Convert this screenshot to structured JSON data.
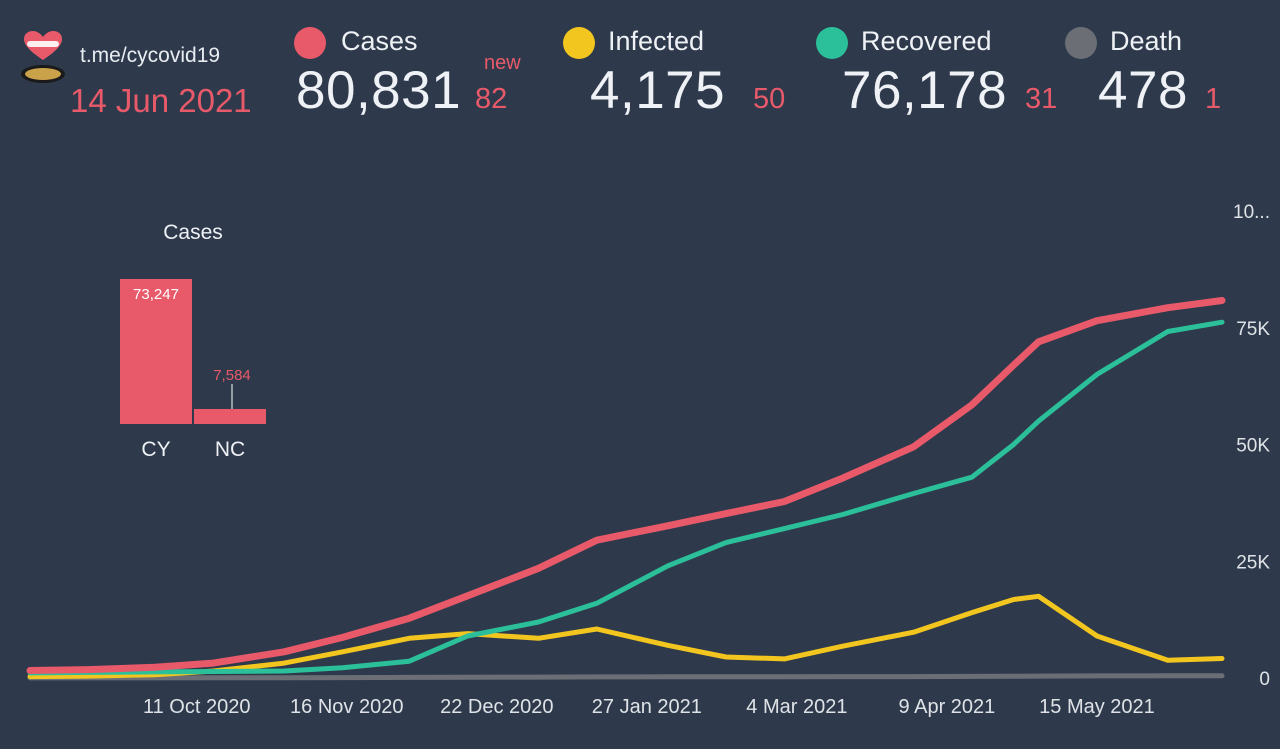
{
  "header": {
    "link": "t.me/cycovid19",
    "date": "14 Jun 2021"
  },
  "stats": [
    {
      "label": "Cases",
      "value": "80,831",
      "new_label": "new",
      "new": "82",
      "color": "#e85a6a"
    },
    {
      "label": "Infected",
      "value": "4,175",
      "new": "50",
      "color": "#f2c61f"
    },
    {
      "label": "Recovered",
      "value": "76,178",
      "new": "31",
      "color": "#2bbf9a"
    },
    {
      "label": "Death",
      "value": "478",
      "new": "1",
      "color": "#6b6f75"
    }
  ],
  "bar_chart": {
    "title": "Cases",
    "categories": [
      "CY",
      "NC"
    ],
    "values": [
      73247,
      7584
    ],
    "value_labels": [
      "73,247",
      "7,584"
    ],
    "color": "#e85a6a"
  },
  "chart_data": {
    "type": "line",
    "x_tick_labels": [
      "11 Oct 2020",
      "16 Nov 2020",
      "22 Dec 2020",
      "27 Jan 2021",
      "4 Mar 2021",
      "9 Apr 2021",
      "15 May 2021"
    ],
    "y_tick_labels": [
      "0",
      "25K",
      "50K",
      "75K",
      "10..."
    ],
    "ylim": [
      0,
      100000
    ],
    "x_dates": [
      "2020-09-01",
      "2020-09-15",
      "2020-10-01",
      "2020-10-15",
      "2020-11-01",
      "2020-11-15",
      "2020-12-01",
      "2020-12-15",
      "2021-01-01",
      "2021-01-15",
      "2021-02-01",
      "2021-02-15",
      "2021-03-01",
      "2021-03-15",
      "2021-04-01",
      "2021-04-15",
      "2021-04-25",
      "2021-05-01",
      "2021-05-15",
      "2021-06-01",
      "2021-06-14"
    ],
    "series": [
      {
        "name": "Cases",
        "color": "#e85a6a",
        "values": [
          1600,
          1800,
          2300,
          3200,
          5600,
          8700,
          12800,
          17600,
          23500,
          29500,
          32600,
          35200,
          37800,
          42800,
          49500,
          58500,
          67000,
          72000,
          76500,
          79300,
          80831
        ]
      },
      {
        "name": "Infected",
        "color": "#f2c61f",
        "values": [
          300,
          400,
          700,
          1500,
          3200,
          5600,
          8500,
          9500,
          8500,
          10500,
          7000,
          4500,
          4100,
          6800,
          9800,
          14000,
          16800,
          17500,
          9000,
          3800,
          4175
        ]
      },
      {
        "name": "Recovered",
        "color": "#2bbf9a",
        "values": [
          1100,
          1200,
          1300,
          1400,
          1500,
          2200,
          3600,
          9000,
          12000,
          16000,
          24000,
          29000,
          32000,
          35000,
          39500,
          43000,
          50000,
          55000,
          65000,
          74200,
          76178
        ]
      },
      {
        "name": "Death",
        "color": "#6b6f75",
        "values": [
          20,
          20,
          30,
          40,
          60,
          90,
          120,
          160,
          200,
          240,
          250,
          260,
          270,
          290,
          310,
          350,
          380,
          400,
          440,
          470,
          478
        ]
      }
    ]
  }
}
